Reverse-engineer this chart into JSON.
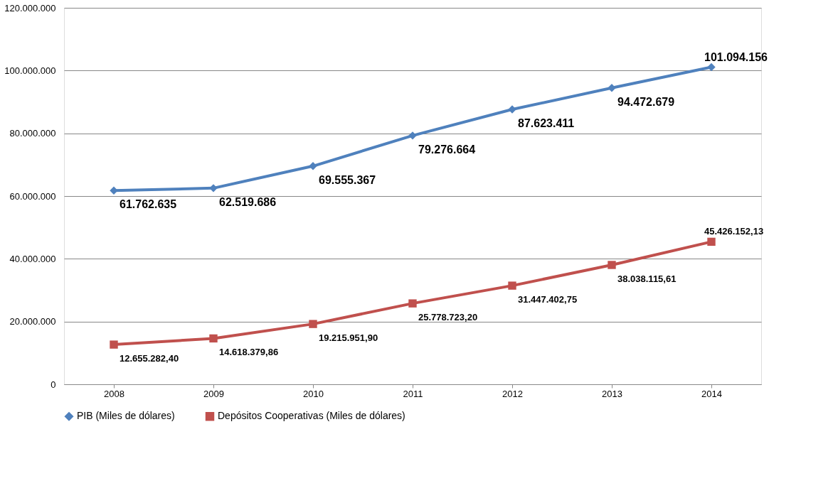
{
  "chart_data": {
    "type": "line",
    "categories": [
      "2008",
      "2009",
      "2010",
      "2011",
      "2012",
      "2013",
      "2014"
    ],
    "series": [
      {
        "name": "PIB (Miles de dólares)",
        "color": "#4f81bd",
        "marker": "diamond",
        "values": [
          61762635,
          62519686,
          69555367,
          79276664,
          87623411,
          94472679,
          101094156
        ],
        "value_labels": [
          "61.762.635",
          "62.519.686",
          "69.555.367",
          "79.276.664",
          "87.623.411",
          "94.472.679",
          "101.094.156"
        ]
      },
      {
        "name": "Depósitos Cooperativas (Miles de dólares)",
        "color": "#c0504d",
        "marker": "square",
        "values": [
          12655282.4,
          14618379.86,
          19215951.9,
          25778723.2,
          31447402.75,
          38038115.61,
          45426152.13
        ],
        "value_labels": [
          "12.655.282,40",
          "14.618.379,86",
          "19.215.951,90",
          "25.778.723,20",
          "31.447.402,75",
          "38.038.115,61",
          "45.426.152,13"
        ]
      }
    ],
    "ylim": [
      0,
      120000000
    ],
    "yticks": [
      0,
      {
        "value": 20000000,
        "label": "20.000.000"
      },
      {
        "value": 40000000,
        "label": "40.000.000"
      },
      {
        "value": 60000000,
        "label": "60.000.000"
      },
      {
        "value": 80000000,
        "label": "80.000.000"
      },
      {
        "value": 100000000,
        "label": "100.000.000"
      },
      {
        "value": 120000000,
        "label": "120.000.000"
      }
    ],
    "grid": "y",
    "legend": "bottom",
    "line_style": "solid"
  }
}
